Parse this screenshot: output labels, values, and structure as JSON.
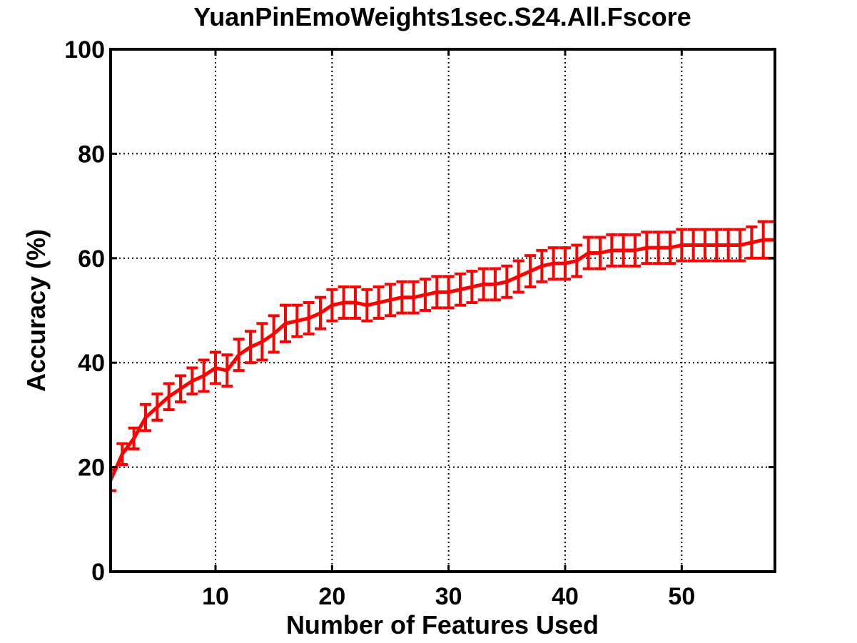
{
  "chart_data": {
    "type": "line",
    "title": "YuanPinEmoWeights1sec.S24.All.Fscore",
    "xlabel": "Number of Features Used",
    "ylabel": "Accuracy (%)",
    "xlim": [
      1,
      58
    ],
    "ylim": [
      0,
      100
    ],
    "x_ticks": [
      10,
      20,
      30,
      40,
      50
    ],
    "y_ticks": [
      0,
      20,
      40,
      60,
      80,
      100
    ],
    "x_tick_labels": [
      "10",
      "20",
      "30",
      "40",
      "50"
    ],
    "y_tick_labels": [
      "0",
      "20",
      "40",
      "60",
      "80",
      "100"
    ],
    "grid": true,
    "error_bars": true,
    "series": [
      {
        "color": "#ff0000",
        "x": [
          1,
          2,
          3,
          4,
          5,
          6,
          7,
          8,
          9,
          10,
          11,
          12,
          13,
          14,
          15,
          16,
          17,
          18,
          19,
          20,
          21,
          22,
          23,
          24,
          25,
          26,
          27,
          28,
          29,
          30,
          31,
          32,
          33,
          34,
          35,
          36,
          37,
          38,
          39,
          40,
          41,
          42,
          43,
          44,
          45,
          46,
          47,
          48,
          49,
          50,
          51,
          52,
          53,
          54,
          55,
          56,
          57,
          58
        ],
        "values": [
          17.5,
          22.5,
          25.5,
          29.5,
          31.5,
          33.5,
          35,
          36.5,
          37.5,
          39,
          38.5,
          41.5,
          43,
          44,
          45.5,
          47.5,
          48,
          48.5,
          49.5,
          51,
          51.5,
          51.5,
          51,
          51.5,
          52,
          52.5,
          52.5,
          53,
          53.5,
          53.5,
          54,
          54.5,
          55,
          55,
          55.5,
          56.5,
          57.5,
          58.5,
          59,
          59,
          59.5,
          61,
          61,
          61.5,
          61.5,
          61.5,
          62,
          62,
          62,
          62.5,
          62.5,
          62.5,
          62.5,
          62.5,
          62.5,
          63,
          63.5,
          63.5
        ],
        "errors": [
          2,
          2,
          2,
          2.5,
          2.5,
          2.5,
          2.5,
          2.5,
          3,
          3,
          3,
          3,
          3,
          3.5,
          3.5,
          3.5,
          3,
          3,
          3,
          3,
          3,
          3,
          3,
          3,
          3,
          3,
          3,
          3,
          3,
          3,
          3,
          3,
          3,
          3,
          3,
          3,
          3,
          3,
          3,
          3,
          3,
          3,
          3,
          3,
          3,
          3,
          3,
          3,
          3,
          3,
          3,
          3,
          3,
          3,
          3,
          3,
          3.5,
          3.5
        ]
      }
    ]
  }
}
